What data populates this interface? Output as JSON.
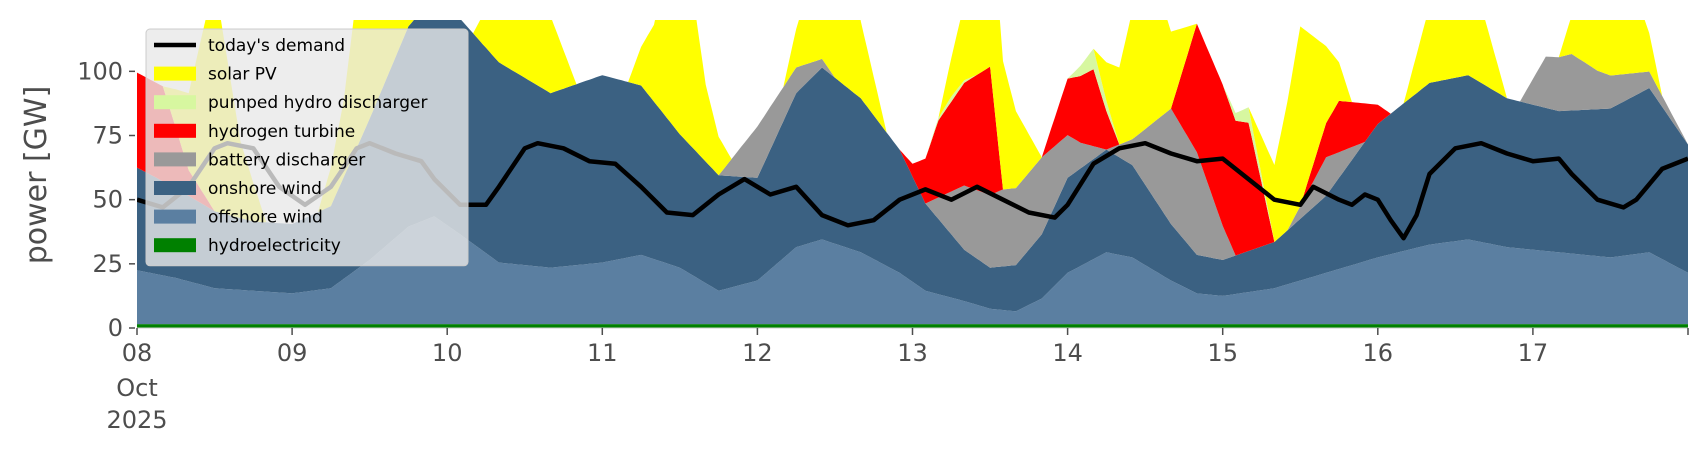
{
  "chart_data": {
    "type": "area",
    "title": "",
    "ylabel": "power [GW]",
    "xlabel": "",
    "ylim": [
      0,
      120
    ],
    "xlim": [
      0,
      240
    ],
    "y_ticks": [
      0,
      25,
      50,
      75,
      100
    ],
    "x_ticks": [
      {
        "h": 0,
        "label": "08"
      },
      {
        "h": 24,
        "label": "09"
      },
      {
        "h": 48,
        "label": "10"
      },
      {
        "h": 72,
        "label": "11"
      },
      {
        "h": 96,
        "label": "12"
      },
      {
        "h": 120,
        "label": "13"
      },
      {
        "h": 144,
        "label": "14"
      },
      {
        "h": 168,
        "label": "15"
      },
      {
        "h": 192,
        "label": "16"
      },
      {
        "h": 216,
        "label": "17"
      }
    ],
    "x_first_sublabels": [
      "Oct",
      "2025"
    ],
    "x_unit": "hours from 2025-10-08 00:00",
    "legend_position": "top-left",
    "series": [
      {
        "name": "hydroelectricity",
        "color": "#008000",
        "knots": [
          [
            0,
            1.5
          ],
          [
            240,
            1.5
          ]
        ]
      },
      {
        "name": "offshore wind",
        "color": "#5b7fa1",
        "knots": [
          [
            0,
            21
          ],
          [
            6,
            18
          ],
          [
            12,
            14
          ],
          [
            18,
            13
          ],
          [
            24,
            12
          ],
          [
            30,
            14
          ],
          [
            36,
            25
          ],
          [
            42,
            38
          ],
          [
            46,
            42
          ],
          [
            50,
            35
          ],
          [
            56,
            24
          ],
          [
            64,
            22
          ],
          [
            72,
            24
          ],
          [
            78,
            27
          ],
          [
            84,
            22
          ],
          [
            90,
            13
          ],
          [
            96,
            17
          ],
          [
            102,
            30
          ],
          [
            106,
            33
          ],
          [
            112,
            28
          ],
          [
            118,
            20
          ],
          [
            122,
            13
          ],
          [
            128,
            9
          ],
          [
            132,
            6
          ],
          [
            136,
            5
          ],
          [
            140,
            10
          ],
          [
            144,
            20
          ],
          [
            150,
            28
          ],
          [
            154,
            26
          ],
          [
            160,
            17
          ],
          [
            164,
            12
          ],
          [
            168,
            11
          ],
          [
            176,
            14
          ],
          [
            184,
            20
          ],
          [
            192,
            26
          ],
          [
            200,
            31
          ],
          [
            206,
            33
          ],
          [
            212,
            30
          ],
          [
            220,
            28
          ],
          [
            228,
            26
          ],
          [
            234,
            28
          ],
          [
            240,
            20
          ]
        ]
      },
      {
        "name": "onshore wind",
        "color": "#3b6182",
        "knots": [
          [
            0,
            40
          ],
          [
            6,
            35
          ],
          [
            12,
            30
          ],
          [
            18,
            27
          ],
          [
            24,
            27
          ],
          [
            30,
            32
          ],
          [
            36,
            55
          ],
          [
            42,
            78
          ],
          [
            46,
            86
          ],
          [
            50,
            84
          ],
          [
            56,
            78
          ],
          [
            64,
            68
          ],
          [
            72,
            73
          ],
          [
            78,
            66
          ],
          [
            84,
            52
          ],
          [
            90,
            45
          ],
          [
            96,
            40
          ],
          [
            102,
            60
          ],
          [
            106,
            67
          ],
          [
            112,
            60
          ],
          [
            118,
            48
          ],
          [
            122,
            34
          ],
          [
            128,
            20
          ],
          [
            132,
            16
          ],
          [
            136,
            18
          ],
          [
            140,
            25
          ],
          [
            144,
            37
          ],
          [
            150,
            40
          ],
          [
            154,
            36
          ],
          [
            160,
            22
          ],
          [
            164,
            15
          ],
          [
            168,
            14
          ],
          [
            176,
            18
          ],
          [
            184,
            30
          ],
          [
            192,
            52
          ],
          [
            200,
            63
          ],
          [
            206,
            64
          ],
          [
            212,
            58
          ],
          [
            220,
            55
          ],
          [
            228,
            58
          ],
          [
            234,
            64
          ],
          [
            240,
            50
          ]
        ]
      },
      {
        "name": "battery discharger",
        "color": "#999999",
        "knots": [
          [
            0,
            0
          ],
          [
            90,
            0
          ],
          [
            96,
            20
          ],
          [
            102,
            10
          ],
          [
            108,
            0
          ],
          [
            118,
            0
          ],
          [
            122,
            0
          ],
          [
            128,
            25
          ],
          [
            134,
            30
          ],
          [
            140,
            30
          ],
          [
            146,
            10
          ],
          [
            150,
            0
          ],
          [
            154,
            10
          ],
          [
            160,
            45
          ],
          [
            164,
            40
          ],
          [
            170,
            0
          ],
          [
            178,
            0
          ],
          [
            184,
            15
          ],
          [
            190,
            0
          ],
          [
            200,
            0
          ],
          [
            214,
            0
          ],
          [
            218,
            20
          ],
          [
            222,
            22
          ],
          [
            226,
            15
          ],
          [
            240,
            0
          ]
        ]
      },
      {
        "name": "hydrogen turbine",
        "color": "#ff0000",
        "knots": [
          [
            0,
            37
          ],
          [
            4,
            37
          ],
          [
            8,
            10
          ],
          [
            12,
            0
          ],
          [
            118,
            0
          ],
          [
            120,
            5
          ],
          [
            124,
            30
          ],
          [
            128,
            40
          ],
          [
            132,
            50
          ],
          [
            134,
            0
          ],
          [
            140,
            0
          ],
          [
            144,
            22
          ],
          [
            148,
            30
          ],
          [
            152,
            0
          ],
          [
            160,
            0
          ],
          [
            164,
            50
          ],
          [
            168,
            55
          ],
          [
            172,
            50
          ],
          [
            176,
            0
          ],
          [
            180,
            0
          ],
          [
            186,
            20
          ],
          [
            190,
            15
          ],
          [
            194,
            0
          ],
          [
            240,
            0
          ]
        ]
      },
      {
        "name": "pumped hydro discharger",
        "color": "#d7f7a0",
        "knots": [
          [
            0,
            0
          ],
          [
            122,
            0
          ],
          [
            126,
            2
          ],
          [
            130,
            0
          ],
          [
            144,
            0
          ],
          [
            148,
            8
          ],
          [
            152,
            0
          ],
          [
            168,
            0
          ],
          [
            172,
            6
          ],
          [
            176,
            0
          ],
          [
            240,
            0
          ]
        ]
      },
      {
        "name": "solar PV",
        "color": "#ffff00",
        "knots": [
          [
            0,
            0
          ],
          [
            4,
            0
          ],
          [
            8,
            30
          ],
          [
            12,
            90
          ],
          [
            16,
            30
          ],
          [
            20,
            0
          ],
          [
            28,
            0
          ],
          [
            32,
            30
          ],
          [
            36,
            90
          ],
          [
            40,
            30
          ],
          [
            44,
            0
          ],
          [
            52,
            0
          ],
          [
            56,
            30
          ],
          [
            60,
            90
          ],
          [
            64,
            30
          ],
          [
            68,
            0
          ],
          [
            76,
            0
          ],
          [
            80,
            30
          ],
          [
            84,
            90
          ],
          [
            88,
            30
          ],
          [
            92,
            0
          ],
          [
            100,
            0
          ],
          [
            104,
            30
          ],
          [
            108,
            90
          ],
          [
            112,
            30
          ],
          [
            116,
            0
          ],
          [
            124,
            0
          ],
          [
            128,
            30
          ],
          [
            132,
            70
          ],
          [
            136,
            30
          ],
          [
            140,
            0
          ],
          [
            148,
            0
          ],
          [
            152,
            30
          ],
          [
            156,
            70
          ],
          [
            160,
            30
          ],
          [
            164,
            0
          ],
          [
            172,
            0
          ],
          [
            176,
            30
          ],
          [
            180,
            70
          ],
          [
            184,
            30
          ],
          [
            188,
            0
          ],
          [
            196,
            0
          ],
          [
            200,
            30
          ],
          [
            204,
            90
          ],
          [
            208,
            30
          ],
          [
            212,
            0
          ],
          [
            220,
            0
          ],
          [
            224,
            30
          ],
          [
            228,
            90
          ],
          [
            232,
            30
          ],
          [
            236,
            0
          ],
          [
            240,
            0
          ]
        ]
      }
    ],
    "demand": {
      "name": "today's demand",
      "color": "#000000",
      "knots": [
        [
          0,
          50
        ],
        [
          4,
          47
        ],
        [
          8,
          55
        ],
        [
          12,
          70
        ],
        [
          14,
          72
        ],
        [
          18,
          70
        ],
        [
          22,
          55
        ],
        [
          26,
          48
        ],
        [
          30,
          55
        ],
        [
          34,
          70
        ],
        [
          36,
          72
        ],
        [
          40,
          68
        ],
        [
          44,
          65
        ],
        [
          46,
          58
        ],
        [
          50,
          48
        ],
        [
          54,
          48
        ],
        [
          56,
          55
        ],
        [
          60,
          70
        ],
        [
          62,
          72
        ],
        [
          66,
          70
        ],
        [
          70,
          65
        ],
        [
          74,
          64
        ],
        [
          78,
          55
        ],
        [
          82,
          45
        ],
        [
          86,
          44
        ],
        [
          90,
          52
        ],
        [
          94,
          58
        ],
        [
          98,
          52
        ],
        [
          102,
          55
        ],
        [
          106,
          44
        ],
        [
          110,
          40
        ],
        [
          114,
          42
        ],
        [
          118,
          50
        ],
        [
          122,
          54
        ],
        [
          126,
          50
        ],
        [
          130,
          55
        ],
        [
          134,
          50
        ],
        [
          138,
          45
        ],
        [
          142,
          43
        ],
        [
          144,
          48
        ],
        [
          148,
          64
        ],
        [
          152,
          70
        ],
        [
          156,
          72
        ],
        [
          160,
          68
        ],
        [
          164,
          65
        ],
        [
          168,
          66
        ],
        [
          172,
          58
        ],
        [
          176,
          50
        ],
        [
          180,
          48
        ],
        [
          182,
          55
        ],
        [
          186,
          50
        ],
        [
          188,
          48
        ],
        [
          190,
          52
        ],
        [
          192,
          50
        ],
        [
          194,
          42
        ],
        [
          196,
          35
        ],
        [
          198,
          44
        ],
        [
          200,
          60
        ],
        [
          204,
          70
        ],
        [
          208,
          72
        ],
        [
          212,
          68
        ],
        [
          216,
          65
        ],
        [
          220,
          66
        ],
        [
          222,
          60
        ],
        [
          226,
          50
        ],
        [
          230,
          47
        ],
        [
          232,
          50
        ],
        [
          236,
          62
        ],
        [
          240,
          66
        ]
      ]
    }
  }
}
